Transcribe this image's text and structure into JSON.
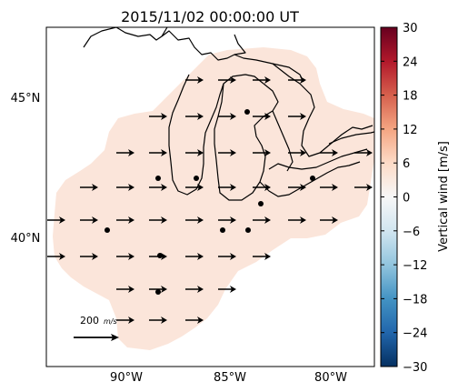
{
  "title": "2015/11/02 00:00:00 UT",
  "map": {
    "lat_ticks": [
      "45°N",
      "40°N"
    ],
    "lon_ticks": [
      "90°W",
      "85°W",
      "80°W"
    ],
    "coverage_color": "#fbe5da",
    "scale_label": "200",
    "scale_unit": "m/s"
  },
  "colorbar": {
    "label": "Vertical wind [m/s]",
    "ticks": [
      "30",
      "24",
      "18",
      "12",
      "6",
      "0",
      "−6",
      "−12",
      "−18",
      "−24",
      "−30"
    ],
    "colormap": "RdBu_r",
    "min": -30,
    "max": 30
  }
}
